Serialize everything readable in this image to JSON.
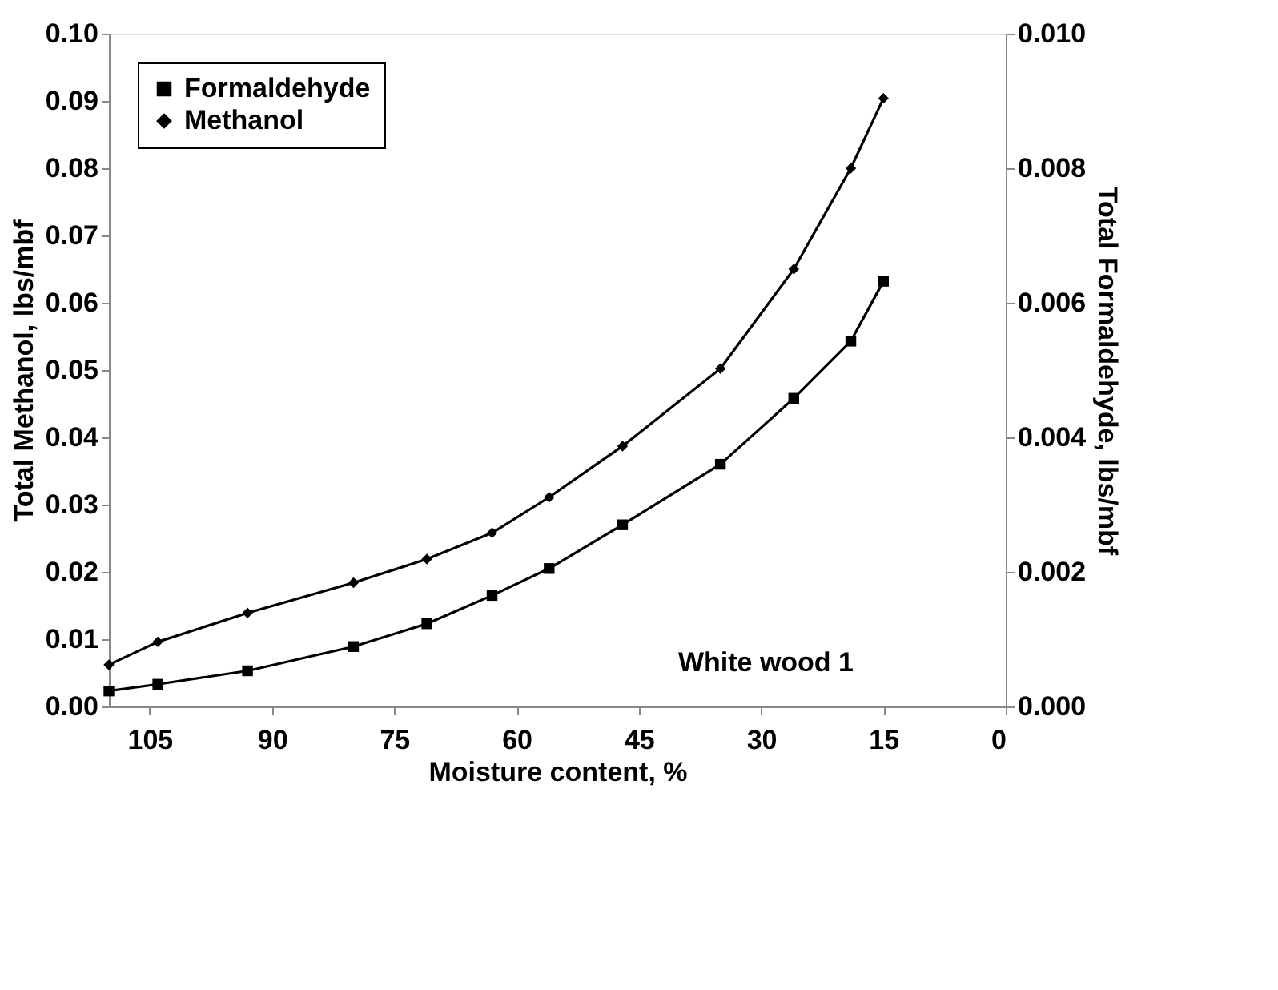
{
  "chart_data": {
    "type": "line",
    "xlabel": "Moisture content, %",
    "ylabel": "Total Methanol, lbs/mbf",
    "y2label": "Total Formaldehyde, lbs/mbf",
    "x": [
      110,
      104,
      93,
      80,
      71,
      63,
      56,
      47,
      35,
      26,
      19,
      15
    ],
    "series": [
      {
        "name": "Formaldehyde",
        "color": "#000000",
        "marker": "square",
        "axis": "y2",
        "values": [
          0.00023,
          0.00033,
          0.00053,
          0.00089,
          0.00123,
          0.00165,
          0.00205,
          0.0027,
          0.0036,
          0.00458,
          0.00543,
          0.00632
        ]
      },
      {
        "name": "Methanol",
        "color": "#000000",
        "marker": "diamond",
        "values": [
          0.0062,
          0.0096,
          0.0139,
          0.0184,
          0.0219,
          0.0258,
          0.0311,
          0.0387,
          0.0502,
          0.065,
          0.08,
          0.0904
        ]
      }
    ],
    "xlim": [
      110,
      0
    ],
    "xticks": [
      105,
      90,
      75,
      60,
      45,
      30,
      15,
      0
    ],
    "ylim": [
      0,
      0.1
    ],
    "yticks": [
      {
        "value": 0,
        "label": "0.00"
      },
      {
        "value": 0.01,
        "label": "0.01"
      },
      {
        "value": 0.02,
        "label": "0.02"
      },
      {
        "value": 0.03,
        "label": "0.03"
      },
      {
        "value": 0.04,
        "label": "0.04"
      },
      {
        "value": 0.05,
        "label": "0.05"
      },
      {
        "value": 0.06,
        "label": "0.06"
      },
      {
        "value": 0.07,
        "label": "0.07"
      },
      {
        "value": 0.08,
        "label": "0.08"
      },
      {
        "value": 0.09,
        "label": "0.09"
      },
      {
        "value": 0.1,
        "label": "0.10"
      }
    ],
    "y2lim": [
      0,
      0.01
    ],
    "y2ticks": [
      {
        "value": 0,
        "label": "0.000"
      },
      {
        "value": 0.002,
        "label": "0.002"
      },
      {
        "value": 0.004,
        "label": "0.004"
      },
      {
        "value": 0.006,
        "label": "0.006"
      },
      {
        "value": 0.008,
        "label": "0.008"
      },
      {
        "value": 0.01,
        "label": "0.010"
      }
    ],
    "annotations": [
      "White wood 1"
    ],
    "legend": "top left",
    "grid": false,
    "line_style": "solid"
  }
}
